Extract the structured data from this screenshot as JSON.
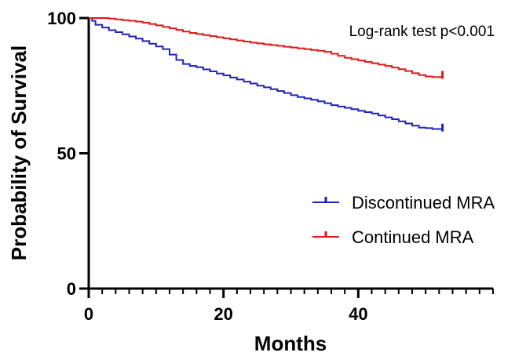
{
  "chart_data": {
    "type": "line",
    "subtype": "kaplan-meier-step",
    "xlabel": "Months",
    "ylabel": "Probability of Survival",
    "xlim": [
      0,
      60
    ],
    "ylim": [
      0,
      100
    ],
    "x_ticks": [
      0,
      20,
      40
    ],
    "y_ticks": [
      0,
      50,
      100
    ],
    "x_tick_labels": [
      "0",
      "20",
      "40"
    ],
    "y_tick_labels": [
      "0",
      "50",
      "100"
    ],
    "x_minor_step": 2,
    "grid": false,
    "annotation": "Log-rank test p<0.001",
    "legend_position": "right",
    "series": [
      {
        "name": "Discontinued MRA",
        "color": "#2222b8",
        "censor_at": [
          52.5,
          59.5
        ],
        "points": [
          [
            0,
            100
          ],
          [
            0.5,
            99
          ],
          [
            1,
            97.5
          ],
          [
            2,
            96.5
          ],
          [
            3,
            95.5
          ],
          [
            4,
            94.8
          ],
          [
            5,
            94
          ],
          [
            6,
            93.2
          ],
          [
            7,
            92.4
          ],
          [
            8,
            91.5
          ],
          [
            9,
            90.5
          ],
          [
            10,
            89.5
          ],
          [
            11,
            88.5
          ],
          [
            12,
            86.5
          ],
          [
            13,
            84.5
          ],
          [
            14,
            83
          ],
          [
            15,
            82.3
          ],
          [
            16,
            81.8
          ],
          [
            17,
            81
          ],
          [
            18,
            80.3
          ],
          [
            19,
            79.5
          ],
          [
            20,
            78.8
          ],
          [
            21,
            78
          ],
          [
            22,
            77.3
          ],
          [
            23,
            76.5
          ],
          [
            24,
            75.8
          ],
          [
            25,
            75
          ],
          [
            26,
            74.4
          ],
          [
            27,
            73.7
          ],
          [
            28,
            73
          ],
          [
            29,
            72.3
          ],
          [
            30,
            71.5
          ],
          [
            31,
            70.8
          ],
          [
            32,
            70.3
          ],
          [
            33,
            69.8
          ],
          [
            34,
            69.2
          ],
          [
            35,
            68.5
          ],
          [
            36,
            67.8
          ],
          [
            37,
            67.3
          ],
          [
            38,
            66.8
          ],
          [
            39,
            66.3
          ],
          [
            40,
            65.7
          ],
          [
            41,
            65.2
          ],
          [
            42,
            64.7
          ],
          [
            43,
            64
          ],
          [
            44,
            63.3
          ],
          [
            45,
            62.6
          ],
          [
            46,
            61.8
          ],
          [
            47,
            61
          ],
          [
            48,
            60.2
          ],
          [
            49,
            59.5
          ],
          [
            50,
            59.3
          ],
          [
            51,
            59
          ],
          [
            52,
            59
          ],
          [
            52.5,
            59.5
          ]
        ]
      },
      {
        "name": "Continued MRA",
        "color": "#e01818",
        "censor_at": [
          52.5,
          79
        ],
        "points": [
          [
            0,
            100
          ],
          [
            2,
            100
          ],
          [
            3,
            99.8
          ],
          [
            4,
            99.5
          ],
          [
            5,
            99.2
          ],
          [
            6,
            99
          ],
          [
            7,
            98.7
          ],
          [
            8,
            98.3
          ],
          [
            9,
            97.8
          ],
          [
            10,
            97.3
          ],
          [
            11,
            96.7
          ],
          [
            12,
            96.2
          ],
          [
            13,
            95.6
          ],
          [
            14,
            95
          ],
          [
            15,
            94.5
          ],
          [
            16,
            94.1
          ],
          [
            17,
            93.7
          ],
          [
            18,
            93.3
          ],
          [
            19,
            92.9
          ],
          [
            20,
            92.5
          ],
          [
            21,
            92.1
          ],
          [
            22,
            91.7
          ],
          [
            23,
            91.3
          ],
          [
            24,
            90.9
          ],
          [
            25,
            90.6
          ],
          [
            26,
            90.3
          ],
          [
            27,
            90
          ],
          [
            28,
            89.7
          ],
          [
            29,
            89.4
          ],
          [
            30,
            89.1
          ],
          [
            31,
            88.8
          ],
          [
            32,
            88.5
          ],
          [
            33,
            88.2
          ],
          [
            34,
            87.9
          ],
          [
            35,
            87.5
          ],
          [
            36,
            86.8
          ],
          [
            37,
            86
          ],
          [
            38,
            85.3
          ],
          [
            39,
            84.8
          ],
          [
            40,
            84.3
          ],
          [
            41,
            83.8
          ],
          [
            42,
            83.3
          ],
          [
            43,
            82.8
          ],
          [
            44,
            82.3
          ],
          [
            45,
            81.7
          ],
          [
            46,
            81.1
          ],
          [
            47,
            80.4
          ],
          [
            48,
            79.6
          ],
          [
            49,
            78.9
          ],
          [
            50,
            78.4
          ],
          [
            51,
            78.2
          ],
          [
            52,
            78.2
          ],
          [
            52.5,
            79
          ]
        ]
      }
    ]
  }
}
